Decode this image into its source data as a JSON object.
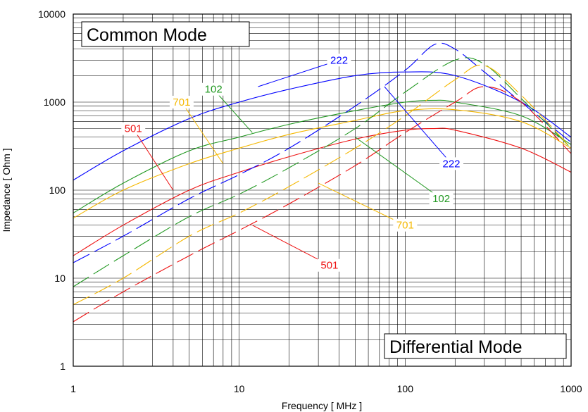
{
  "chart_data": {
    "type": "line",
    "xlabel": "Frequency [ MHz ]",
    "ylabel": "Impedance [ Ohm ]",
    "x_scale": "log",
    "y_scale": "log",
    "xlim": [
      1,
      1000
    ],
    "ylim": [
      1,
      10000
    ],
    "x_ticks": [
      {
        "value": 1,
        "label": "1"
      },
      {
        "value": 10,
        "label": "10"
      },
      {
        "value": 100,
        "label": "100"
      },
      {
        "value": 1000,
        "label": "1000"
      }
    ],
    "y_ticks": [
      {
        "value": 1,
        "label": "1"
      },
      {
        "value": 10,
        "label": "10"
      },
      {
        "value": 100,
        "label": "100"
      },
      {
        "value": 1000,
        "label": "1000"
      },
      {
        "value": 10000,
        "label": "10000"
      }
    ],
    "grid": true,
    "annotations": {
      "common_mode": "Common Mode",
      "differential_mode": "Differential Mode"
    },
    "series": [
      {
        "name": "222",
        "mode": "common",
        "color": "#0000ff",
        "x": [
          1,
          2,
          5,
          10,
          20,
          50,
          100,
          200,
          500,
          1000
        ],
        "y": [
          130,
          280,
          650,
          1000,
          1400,
          2000,
          2200,
          2000,
          1000,
          400
        ]
      },
      {
        "name": "102",
        "mode": "common",
        "color": "#229922",
        "x": [
          1,
          2,
          5,
          10,
          20,
          50,
          100,
          150,
          200,
          500,
          1000
        ],
        "y": [
          55,
          120,
          280,
          400,
          560,
          800,
          1000,
          1050,
          1000,
          700,
          330
        ]
      },
      {
        "name": "701",
        "mode": "common",
        "color": "#f5b800",
        "x": [
          1,
          2,
          5,
          10,
          20,
          50,
          100,
          200,
          500,
          1000
        ],
        "y": [
          48,
          100,
          200,
          300,
          430,
          620,
          800,
          820,
          600,
          300
        ]
      },
      {
        "name": "501",
        "mode": "common",
        "color": "#ee1111",
        "x": [
          1,
          2,
          5,
          10,
          20,
          50,
          100,
          150,
          200,
          500,
          1000
        ],
        "y": [
          18,
          40,
          100,
          160,
          240,
          380,
          480,
          500,
          480,
          300,
          160
        ]
      },
      {
        "name": "222",
        "mode": "differential",
        "color": "#0000ff",
        "x": [
          1,
          2,
          5,
          10,
          20,
          50,
          100,
          150,
          200,
          300,
          500,
          1000
        ],
        "y": [
          15,
          30,
          80,
          150,
          300,
          900,
          2300,
          4500,
          4000,
          2200,
          1000,
          350
        ]
      },
      {
        "name": "102",
        "mode": "differential",
        "color": "#229922",
        "x": [
          1,
          2,
          5,
          10,
          20,
          50,
          100,
          200,
          300,
          500,
          1000
        ],
        "y": [
          8,
          18,
          50,
          90,
          180,
          500,
          1300,
          3000,
          2700,
          1100,
          300
        ]
      },
      {
        "name": "701",
        "mode": "differential",
        "color": "#f5b800",
        "x": [
          1,
          2,
          5,
          10,
          20,
          50,
          100,
          200,
          300,
          500,
          1000
        ],
        "y": [
          5,
          10,
          30,
          55,
          110,
          300,
          700,
          1800,
          2600,
          1200,
          300
        ]
      },
      {
        "name": "501",
        "mode": "differential",
        "color": "#ee1111",
        "x": [
          1,
          2,
          5,
          10,
          20,
          50,
          100,
          200,
          300,
          500,
          1000
        ],
        "y": [
          3.2,
          7,
          18,
          35,
          70,
          190,
          450,
          1000,
          1500,
          1000,
          260
        ]
      }
    ],
    "labels": [
      {
        "text": "222",
        "color": "#0000ff",
        "label_at": [
          40,
          3000
        ],
        "line_to": [
          13,
          1500
        ]
      },
      {
        "text": "102",
        "color": "#229922",
        "label_at": [
          7,
          1400
        ],
        "line_to": [
          12,
          450
        ]
      },
      {
        "text": "701",
        "color": "#f5b800",
        "label_at": [
          4.5,
          1000
        ],
        "line_to": [
          8,
          200
        ]
      },
      {
        "text": "501",
        "color": "#ee1111",
        "label_at": [
          2.3,
          500
        ],
        "line_to": [
          4,
          100
        ]
      },
      {
        "text": "222",
        "color": "#0000ff",
        "label_at": [
          190,
          200
        ],
        "line_to": [
          75,
          1500
        ]
      },
      {
        "text": "102",
        "color": "#229922",
        "label_at": [
          165,
          80
        ],
        "line_to": [
          50,
          400
        ]
      },
      {
        "text": "701",
        "color": "#f5b800",
        "label_at": [
          100,
          40
        ],
        "line_to": [
          30,
          120
        ]
      },
      {
        "text": "501",
        "color": "#ee1111",
        "label_at": [
          35,
          14
        ],
        "line_to": [
          12,
          40
        ]
      }
    ]
  }
}
